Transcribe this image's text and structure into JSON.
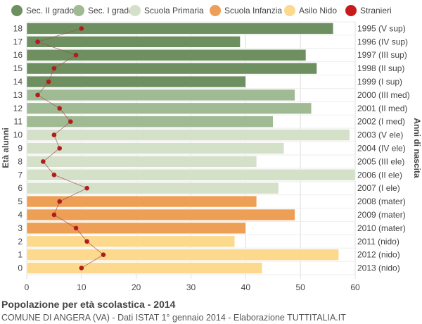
{
  "legend": [
    {
      "label": "Sec. II grado",
      "color": "#6e9060"
    },
    {
      "label": "Sec. I grado",
      "color": "#a0ba93"
    },
    {
      "label": "Scuola Primaria",
      "color": "#d4e0c8"
    },
    {
      "label": "Scuola Infanzia",
      "color": "#ee9f56"
    },
    {
      "label": "Asilo Nido",
      "color": "#fdd98e"
    },
    {
      "label": "Stranieri",
      "color": "#c81a1a"
    }
  ],
  "footer": {
    "title": "Popolazione per età scolastica - 2014",
    "subtitle": "COMUNE DI ANGERA (VA) - Dati ISTAT 1° gennaio 2014 - Elaborazione TUTTITALIA.IT"
  },
  "chart_data": {
    "type": "bar",
    "orientation": "horizontal",
    "ylabel": "Età alunni",
    "ylabel_right": "Anni di nascita",
    "xlim": [
      0,
      60
    ],
    "xticks": [
      0,
      10,
      20,
      30,
      40,
      50,
      60
    ],
    "grid": true,
    "legend_position": "top",
    "categories": [
      "18",
      "17",
      "16",
      "15",
      "14",
      "13",
      "12",
      "11",
      "10",
      "9",
      "8",
      "7",
      "6",
      "5",
      "4",
      "3",
      "2",
      "1",
      "0"
    ],
    "birth_years": [
      "1995 (V sup)",
      "1996 (IV sup)",
      "1997 (III sup)",
      "1998 (II sup)",
      "1999 (I sup)",
      "2000 (III med)",
      "2001 (II med)",
      "2002 (I med)",
      "2003 (V ele)",
      "2004 (IV ele)",
      "2005 (III ele)",
      "2006 (II ele)",
      "2007 (I ele)",
      "2008 (mater)",
      "2009 (mater)",
      "2010 (mater)",
      "2011 (nido)",
      "2012 (nido)",
      "2013 (nido)"
    ],
    "levels": [
      "Sec. II grado",
      "Sec. II grado",
      "Sec. II grado",
      "Sec. II grado",
      "Sec. II grado",
      "Sec. I grado",
      "Sec. I grado",
      "Sec. I grado",
      "Scuola Primaria",
      "Scuola Primaria",
      "Scuola Primaria",
      "Scuola Primaria",
      "Scuola Primaria",
      "Scuola Infanzia",
      "Scuola Infanzia",
      "Scuola Infanzia",
      "Asilo Nido",
      "Asilo Nido",
      "Asilo Nido"
    ],
    "series": [
      {
        "name": "Popolazione",
        "values": [
          56,
          39,
          51,
          53,
          40,
          49,
          52,
          45,
          59,
          47,
          42,
          60,
          46,
          42,
          49,
          40,
          38,
          57,
          43
        ]
      },
      {
        "name": "Stranieri",
        "values": [
          10,
          2,
          9,
          5,
          4,
          2,
          6,
          8,
          5,
          6,
          3,
          5,
          11,
          6,
          5,
          9,
          11,
          14,
          10
        ]
      }
    ]
  }
}
